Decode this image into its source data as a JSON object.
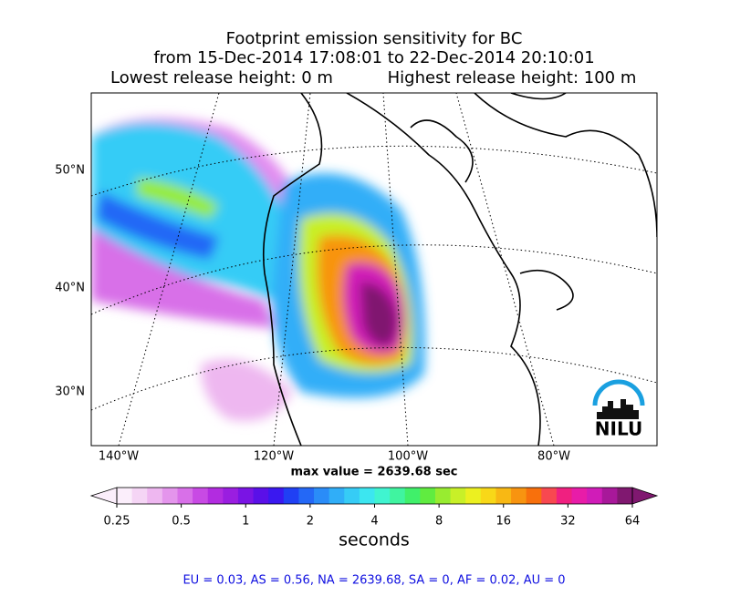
{
  "title": {
    "line1": "Footprint emission sensitivity for BC",
    "line2": "from 15-Dec-2014 17:08:01 to 22-Dec-2014 20:10:01",
    "lowest": "Lowest release height: 0 m",
    "highest": "Highest release height: 100 m"
  },
  "map": {
    "lat_labels": [
      "50°N",
      "40°N",
      "30°N"
    ],
    "lon_labels": [
      "140°W",
      "120°W",
      "100°W",
      "80°W"
    ],
    "logo": "NILU"
  },
  "max_value": "max value = 2639.68 sec",
  "colorbar": {
    "ticks": [
      0.25,
      0.5,
      1,
      2,
      4,
      8,
      16,
      32,
      64
    ],
    "log": true,
    "label": "seconds",
    "colors": [
      "#fbeefb",
      "#f5d5f5",
      "#eeb7f0",
      "#e495ec",
      "#d870e8",
      "#c84ae4",
      "#b22ce0",
      "#9a1ee0",
      "#7a14e4",
      "#5a10e8",
      "#3a18f0",
      "#2040f4",
      "#2468f6",
      "#2a8cf8",
      "#30aef8",
      "#36ccf6",
      "#3ce6f0",
      "#40f4d0",
      "#40f4a0",
      "#40f06a",
      "#60ec40",
      "#98ec30",
      "#c8f028",
      "#ecf020",
      "#f8d818",
      "#f8b814",
      "#f89410",
      "#f8700c",
      "#f84850",
      "#f02080",
      "#e81ca8",
      "#d01cb8",
      "#a8189a",
      "#801870"
    ]
  },
  "footer": "EU = 0.03,  AS = 0.56,  NA = 2639.68,  SA = 0,  AF = 0.02,  AU = 0"
}
